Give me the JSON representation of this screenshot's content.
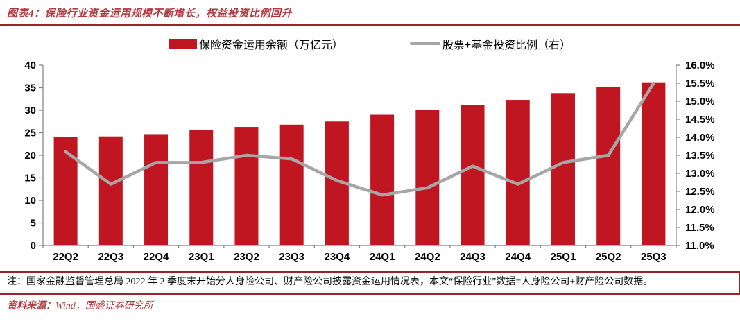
{
  "header": {
    "title": "图表4：保险行业资金运用规模不断增长，权益投资比例回升"
  },
  "colors": {
    "bar_red": "#C01622",
    "line_gray": "#A6A6A6",
    "title_red": "#B4373E",
    "rule_red": "#96262C",
    "axis_gray": "#808080",
    "label_black": "#000000"
  },
  "chart_data": {
    "type": "bar",
    "subtype": "combo-bar-line-dual-axis",
    "title": "",
    "categories": [
      "22Q2",
      "22Q3",
      "22Q4",
      "23Q1",
      "23Q2",
      "23Q3",
      "23Q4",
      "24Q1",
      "24Q2",
      "24Q3",
      "24Q4",
      "25Q1",
      "25Q2",
      "25Q3"
    ],
    "series": [
      {
        "name": "保险资金运用余额（万亿元）",
        "type": "bar",
        "axis": "left",
        "color": "#C01622",
        "values": [
          24.0,
          24.2,
          24.7,
          25.6,
          26.3,
          26.8,
          27.5,
          29.0,
          30.0,
          31.2,
          32.3,
          33.8,
          35.1,
          36.2
        ]
      },
      {
        "name": "股票+基金投资比例（右）",
        "type": "line",
        "axis": "right",
        "color": "#A6A6A6",
        "values": [
          13.6,
          12.7,
          13.3,
          13.3,
          13.5,
          13.4,
          12.8,
          12.4,
          12.6,
          13.2,
          12.7,
          13.3,
          13.5,
          15.5
        ]
      }
    ],
    "left_axis": {
      "min": 0,
      "max": 40,
      "step": 5,
      "ticks": [
        "0",
        "5",
        "10",
        "15",
        "20",
        "25",
        "30",
        "35",
        "40"
      ]
    },
    "right_axis": {
      "min": 11,
      "max": 16,
      "step": 0.5,
      "ticks": [
        "11.0%",
        "11.5%",
        "12.0%",
        "12.5%",
        "13.0%",
        "13.5%",
        "14.0%",
        "14.5%",
        "15.0%",
        "15.5%",
        "16.0%"
      ]
    },
    "grid": false,
    "legend_position": "top"
  },
  "note": {
    "text": "注：国家金融监督管理总局 2022 年 2 季度末开始分人身险公司、财产险公司披露资金运用情况表，本文“保险行业”数据=人身险公司+财产险公司数据。"
  },
  "source": {
    "label": "资料来源：",
    "text": "Wind，国盛证券研究所"
  }
}
